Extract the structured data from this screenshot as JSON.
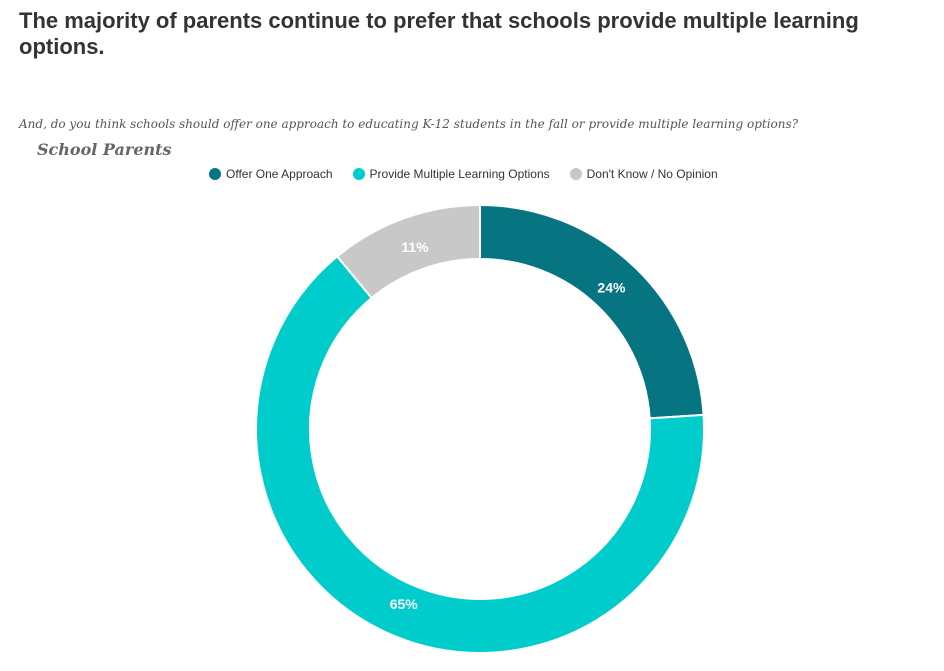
{
  "header": {
    "title": "The majority of parents continue to prefer that schools provide multiple learning options.",
    "question": "And, do you think schools should offer one approach to educating K-12 students in the fall or provide multiple learning options?"
  },
  "chart_data": {
    "type": "pie",
    "title": "School Parents",
    "donut": true,
    "legend_position": "top",
    "categories": [
      "Offer One Approach",
      "Provide Multiple Learning Options",
      "Don't Know / No Opinion"
    ],
    "values": [
      24,
      65,
      11
    ],
    "labels": [
      "24%",
      "65%",
      "11%"
    ],
    "colors": [
      "#077482",
      "#00CCCC",
      "#C8C8C8"
    ]
  }
}
